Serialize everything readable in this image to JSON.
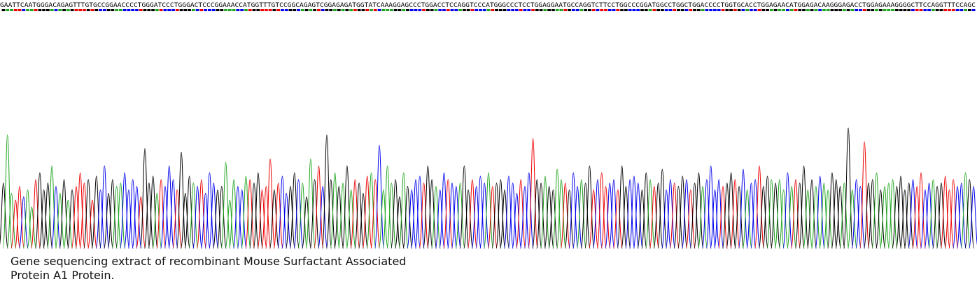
{
  "chart_data": {
    "type": "chromatogram",
    "caption": "Gene sequencing extract of recombinant Mouse Surfactant Associated Protein A1 Protein.",
    "sequence": "GAATTCAATGGGACAGAGTTTGTGCCGGAACCCCTGGGATCCCTGGGACTCCCGGAAACCATGGTTTGTCCGGCAGAGTCGGAGAGATGGTATCAAAGGAGCCCTGGACCTCCAGGTCCCATGGGCCCTCCTGGAGGAATGCCAGGTCTTCCTGGCCCGGATGGCCTGGCTGGACCCCTGGTGCACCTGGAGAACATGGAGACAAGGGAGACCTGGAGAAAGGGGCTTCCAGGTTTCCAGC",
    "base_colors": {
      "A": "#1fa51f",
      "C": "#0000ee",
      "G": "#000000",
      "T": "#ee0000"
    },
    "ylim": [
      0,
      180
    ],
    "peak_heights": [
      95,
      165,
      80,
      70,
      90,
      75,
      85,
      60,
      100,
      110,
      85,
      95,
      120,
      90,
      80,
      100,
      70,
      85,
      90,
      110,
      95,
      100,
      70,
      105,
      85,
      120,
      80,
      100,
      90,
      95,
      110,
      85,
      100,
      90,
      75,
      145,
      95,
      105,
      80,
      100,
      90,
      120,
      100,
      85,
      140,
      80,
      105,
      95,
      90,
      100,
      80,
      110,
      95,
      85,
      90,
      125,
      70,
      100,
      90,
      85,
      105,
      100,
      95,
      110,
      85,
      90,
      130,
      85,
      95,
      105,
      80,
      90,
      110,
      100,
      95,
      75,
      130,
      100,
      120,
      90,
      165,
      100,
      110,
      90,
      95,
      120,
      85,
      100,
      95,
      80,
      105,
      110,
      100,
      150,
      85,
      120,
      95,
      100,
      75,
      110,
      90,
      85,
      100,
      105,
      95,
      120,
      100,
      90,
      85,
      110,
      100,
      95,
      90,
      95,
      120,
      85,
      100,
      90,
      105,
      95,
      110,
      90,
      95,
      100,
      85,
      105,
      95,
      80,
      100,
      90,
      110,
      160,
      100,
      95,
      105,
      90,
      85,
      115,
      100,
      95,
      85,
      110,
      90,
      100,
      95,
      120,
      85,
      100,
      110,
      90,
      95,
      100,
      85,
      120,
      90,
      100,
      105,
      95,
      85,
      110,
      100,
      90,
      95,
      115,
      85,
      100,
      95,
      90,
      105,
      100,
      85,
      95,
      110,
      90,
      100,
      120,
      85,
      100,
      90,
      95,
      110,
      100,
      90,
      115,
      85,
      95,
      100,
      120,
      90,
      105,
      100,
      95,
      100,
      85,
      110,
      90,
      100,
      95,
      120,
      85,
      100,
      90,
      105,
      95,
      85,
      110,
      100,
      90,
      95,
      175,
      85,
      100,
      90,
      155,
      95,
      100,
      110,
      85,
      90,
      95,
      100,
      90,
      105,
      85,
      95,
      100,
      90,
      110,
      85,
      95,
      100,
      90,
      95,
      105,
      85,
      100,
      90,
      95,
      110,
      100,
      90
    ]
  }
}
